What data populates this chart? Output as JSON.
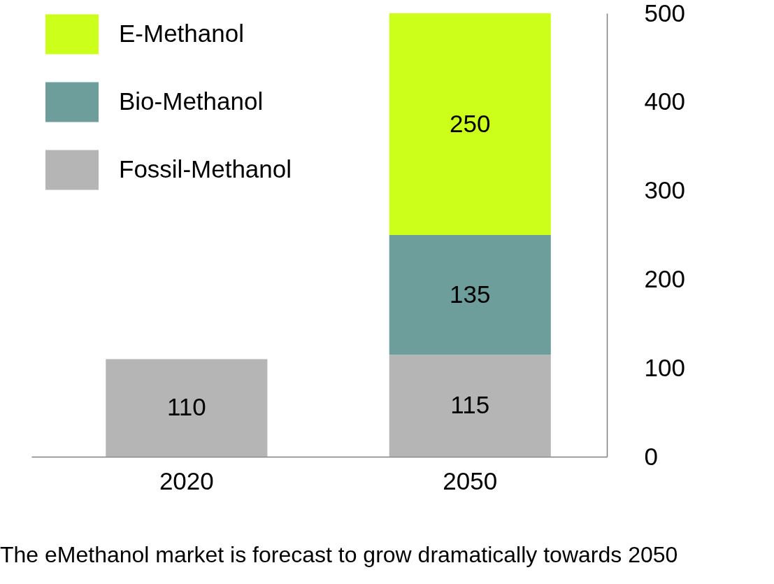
{
  "chart_data": {
    "type": "bar",
    "stacked": true,
    "categories": [
      "2020",
      "2050"
    ],
    "series": [
      {
        "name": "Fossil-Methanol",
        "color": "#b5b5b5",
        "values": [
          110,
          115
        ]
      },
      {
        "name": "Bio-Methanol",
        "color": "#6e9e9c",
        "values": [
          null,
          135
        ]
      },
      {
        "name": "E-Methanol",
        "color": "#ccff1a",
        "values": [
          null,
          250
        ]
      }
    ],
    "ylim": [
      0,
      500
    ],
    "yticks": [
      0,
      100,
      200,
      300,
      400,
      500
    ],
    "data_labels": true,
    "legend": "top left",
    "grid": false,
    "annotations": [
      "The eMethanol market is forecast to grow dramatically towards 2050"
    ]
  }
}
